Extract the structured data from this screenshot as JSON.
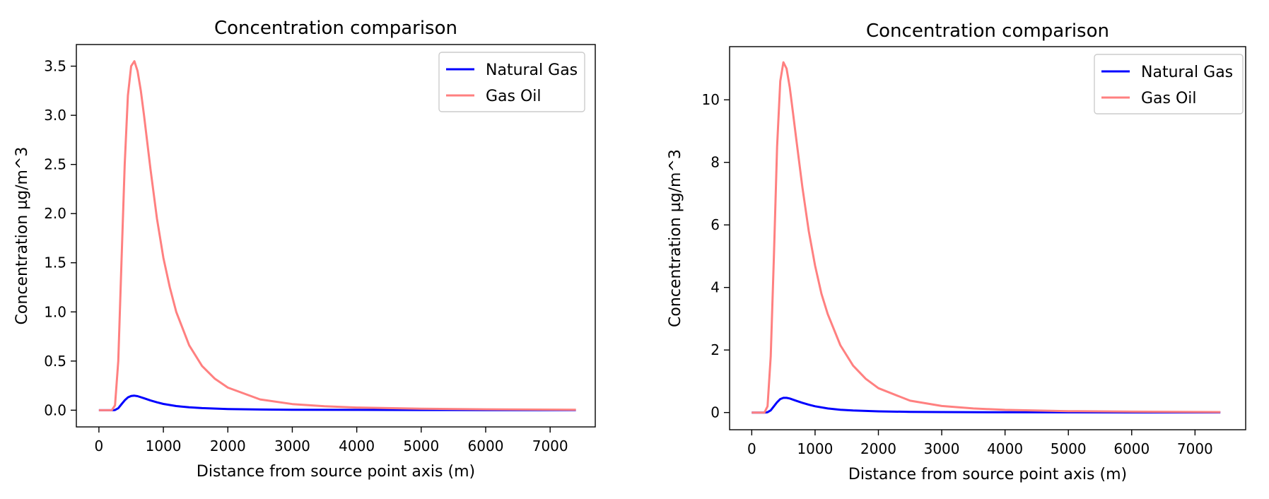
{
  "chart_data": [
    {
      "type": "line",
      "title": "Concentration comparison",
      "xlabel": "Distance from source point axis (m)",
      "ylabel": "Concentration µg/m^3",
      "xlim": [
        -350,
        7700
      ],
      "ylim": [
        -0.17,
        3.72
      ],
      "xticks": [
        0,
        1000,
        2000,
        3000,
        4000,
        5000,
        6000,
        7000
      ],
      "yticks": [
        0.0,
        0.5,
        1.0,
        1.5,
        2.0,
        2.5,
        3.0,
        3.5
      ],
      "ytick_labels": [
        "0.0",
        "0.5",
        "1.0",
        "1.5",
        "2.0",
        "2.5",
        "3.0",
        "3.5"
      ],
      "grid": false,
      "legend_position": "top-right",
      "series": [
        {
          "name": "Natural Gas",
          "color": "#0000ff",
          "x": [
            0,
            200,
            250,
            300,
            350,
            400,
            450,
            500,
            550,
            600,
            700,
            800,
            900,
            1000,
            1200,
            1400,
            1600,
            2000,
            2500,
            3000,
            4000,
            5000,
            6000,
            7400
          ],
          "y": [
            0.0,
            0.0,
            0.002,
            0.02,
            0.06,
            0.1,
            0.13,
            0.145,
            0.148,
            0.143,
            0.122,
            0.099,
            0.08,
            0.064,
            0.042,
            0.029,
            0.021,
            0.012,
            0.007,
            0.005,
            0.003,
            0.002,
            0.001,
            0.001
          ]
        },
        {
          "name": "Gas Oil",
          "color": "#ff8080",
          "x": [
            0,
            200,
            250,
            300,
            350,
            400,
            450,
            500,
            550,
            600,
            650,
            700,
            800,
            900,
            1000,
            1100,
            1200,
            1400,
            1600,
            1800,
            2000,
            2500,
            3000,
            3500,
            4000,
            5000,
            6000,
            7400
          ],
          "y": [
            0.0,
            0.0,
            0.05,
            0.5,
            1.5,
            2.5,
            3.2,
            3.5,
            3.55,
            3.45,
            3.25,
            3.0,
            2.45,
            1.95,
            1.55,
            1.25,
            1.0,
            0.66,
            0.45,
            0.32,
            0.23,
            0.11,
            0.062,
            0.04,
            0.027,
            0.015,
            0.009,
            0.005
          ]
        }
      ]
    },
    {
      "type": "line",
      "title": "Concentration comparison",
      "xlabel": "Distance from source point axis (m)",
      "ylabel": "Concentration µg/m^3",
      "xlim": [
        -350,
        7800
      ],
      "ylim": [
        -0.55,
        11.7
      ],
      "xticks": [
        0,
        1000,
        2000,
        3000,
        4000,
        5000,
        6000,
        7000
      ],
      "yticks": [
        0,
        2,
        4,
        6,
        8,
        10
      ],
      "ytick_labels": [
        "0",
        "2",
        "4",
        "6",
        "8",
        "10"
      ],
      "grid": false,
      "legend_position": "top-right",
      "series": [
        {
          "name": "Natural Gas",
          "color": "#0000ff",
          "x": [
            0,
            200,
            250,
            300,
            350,
            400,
            450,
            500,
            550,
            600,
            700,
            800,
            900,
            1000,
            1200,
            1400,
            1600,
            2000,
            2500,
            3000,
            4000,
            5000,
            6000,
            7400
          ],
          "y": [
            0.0,
            0.0,
            0.01,
            0.07,
            0.2,
            0.33,
            0.43,
            0.47,
            0.47,
            0.45,
            0.38,
            0.31,
            0.25,
            0.2,
            0.13,
            0.09,
            0.065,
            0.038,
            0.022,
            0.015,
            0.009,
            0.006,
            0.004,
            0.003
          ]
        },
        {
          "name": "Gas Oil",
          "color": "#ff8080",
          "x": [
            0,
            200,
            250,
            300,
            350,
            400,
            450,
            500,
            550,
            600,
            650,
            700,
            800,
            900,
            1000,
            1100,
            1200,
            1400,
            1600,
            1800,
            2000,
            2500,
            3000,
            3500,
            4000,
            5000,
            6000,
            7400
          ],
          "y": [
            0.0,
            0.0,
            0.2,
            1.8,
            5.0,
            8.5,
            10.6,
            11.2,
            11.0,
            10.4,
            9.6,
            8.8,
            7.2,
            5.8,
            4.7,
            3.8,
            3.15,
            2.15,
            1.5,
            1.08,
            0.78,
            0.38,
            0.21,
            0.13,
            0.085,
            0.045,
            0.028,
            0.015
          ]
        }
      ]
    }
  ]
}
